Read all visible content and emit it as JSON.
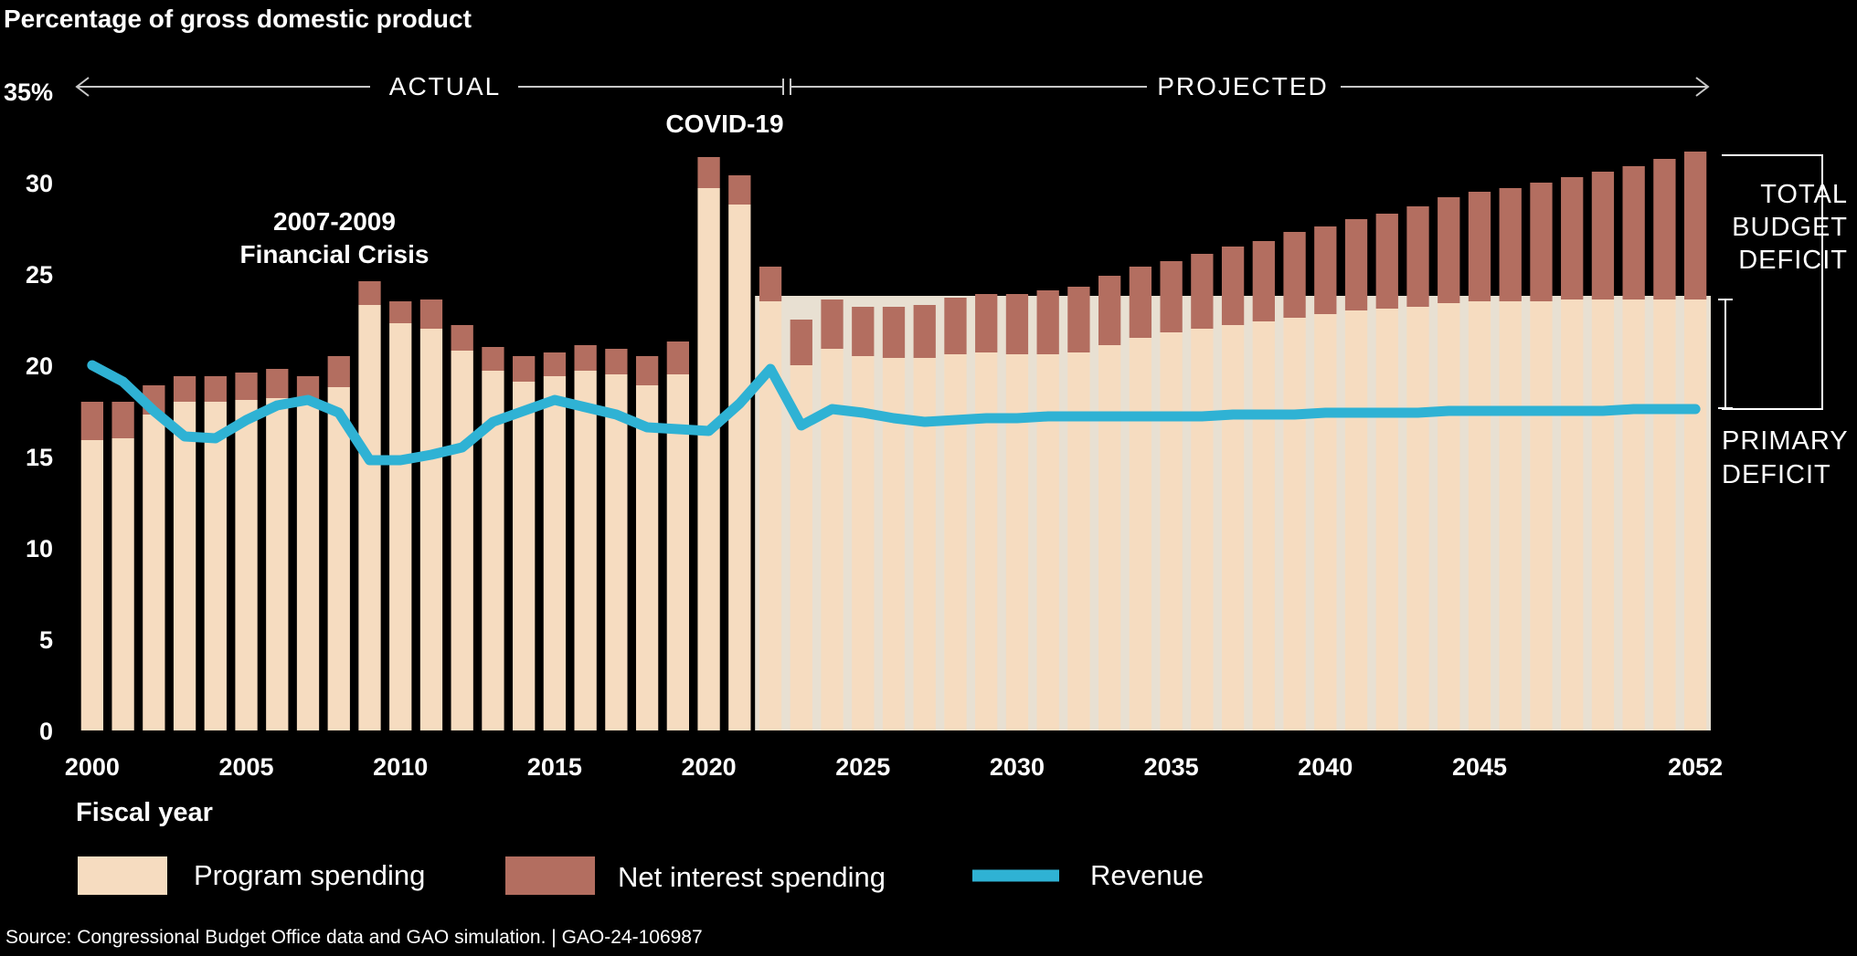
{
  "chart_data": {
    "type": "bar",
    "title": "Percentage of gross domestic product",
    "xlabel": "Fiscal year",
    "ylabel": "",
    "ylim": [
      0,
      35
    ],
    "y_ticks": [
      "0",
      "5",
      "10",
      "15",
      "20",
      "25",
      "30",
      "35%"
    ],
    "x_ticks": [
      "2000",
      "2005",
      "2010",
      "2015",
      "2020",
      "2025",
      "2030",
      "2035",
      "2040",
      "2045",
      "2052"
    ],
    "x_tick_values": [
      2000,
      2005,
      2010,
      2015,
      2020,
      2025,
      2030,
      2035,
      2040,
      2045,
      2052
    ],
    "stacked": true,
    "categories": [
      2000,
      2001,
      2002,
      2003,
      2004,
      2005,
      2006,
      2007,
      2008,
      2009,
      2010,
      2011,
      2012,
      2013,
      2014,
      2015,
      2016,
      2017,
      2018,
      2019,
      2020,
      2021,
      2022,
      2023,
      2024,
      2025,
      2026,
      2027,
      2028,
      2029,
      2030,
      2031,
      2032,
      2033,
      2034,
      2035,
      2036,
      2037,
      2038,
      2039,
      2040,
      2041,
      2042,
      2043,
      2044,
      2045,
      2046,
      2047,
      2048,
      2049,
      2050,
      2051,
      2052
    ],
    "series": [
      {
        "name": "Program spending",
        "kind": "bar",
        "color": "#f6dcc0",
        "values": [
          15.9,
          16.0,
          17.3,
          18.0,
          18.0,
          18.1,
          18.2,
          18.1,
          18.8,
          23.3,
          22.3,
          22.0,
          20.8,
          19.7,
          19.1,
          19.4,
          19.7,
          19.5,
          18.9,
          19.5,
          29.7,
          28.8,
          23.5,
          20.0,
          20.9,
          20.5,
          20.4,
          20.4,
          20.6,
          20.7,
          20.6,
          20.6,
          20.7,
          21.1,
          21.5,
          21.8,
          22.0,
          22.2,
          22.4,
          22.6,
          22.8,
          23.0,
          23.1,
          23.2,
          23.4,
          23.5,
          23.5,
          23.5,
          23.6,
          23.6,
          23.6,
          23.6,
          23.6
        ]
      },
      {
        "name": "Net interest spending",
        "kind": "bar",
        "color": "#b36e60",
        "values": [
          2.1,
          2.0,
          1.6,
          1.4,
          1.4,
          1.5,
          1.6,
          1.3,
          1.7,
          1.3,
          1.2,
          1.6,
          1.4,
          1.3,
          1.4,
          1.3,
          1.4,
          1.4,
          1.6,
          1.8,
          1.7,
          1.6,
          1.9,
          2.5,
          2.7,
          2.7,
          2.8,
          2.9,
          3.1,
          3.2,
          3.3,
          3.5,
          3.6,
          3.8,
          3.9,
          3.9,
          4.1,
          4.3,
          4.4,
          4.7,
          4.8,
          5.0,
          5.2,
          5.5,
          5.8,
          6.0,
          6.2,
          6.5,
          6.7,
          7.0,
          7.3,
          7.7,
          8.1
        ]
      },
      {
        "name": "Revenue",
        "kind": "line",
        "color": "#2fb2d4",
        "values": [
          20.0,
          19.1,
          17.5,
          16.1,
          16.0,
          17.0,
          17.8,
          18.1,
          17.4,
          14.8,
          14.8,
          15.1,
          15.5,
          16.9,
          17.5,
          18.1,
          17.7,
          17.3,
          16.6,
          16.5,
          16.4,
          17.9,
          19.8,
          16.7,
          17.6,
          17.4,
          17.1,
          16.9,
          17.0,
          17.1,
          17.1,
          17.2,
          17.2,
          17.2,
          17.2,
          17.2,
          17.2,
          17.3,
          17.3,
          17.3,
          17.4,
          17.4,
          17.4,
          17.4,
          17.5,
          17.5,
          17.5,
          17.5,
          17.5,
          17.5,
          17.6,
          17.6,
          17.6
        ]
      }
    ],
    "legend": {
      "placement": "bottom-left",
      "items": [
        "Program spending",
        "Net interest spending",
        "Revenue"
      ]
    },
    "annotations": {
      "actual": "ACTUAL",
      "projected": "PROJECTED",
      "actual_end_year": 2022,
      "covid": "COVID-19",
      "crisis_line1": "2007-2009",
      "crisis_line2": "Financial Crisis",
      "total_deficit_line1": "TOTAL",
      "total_deficit_line2": "BUDGET",
      "total_deficit_line3": "DEFICIT",
      "primary_deficit_line1": "PRIMARY",
      "primary_deficit_line2": "DEFICIT"
    },
    "source": "Source: Congressional Budget Office data and GAO simulation.  |  GAO-24-106987"
  },
  "colors": {
    "background": "#000000",
    "text": "#ffffff",
    "projected_area": "#e8e0d2",
    "program": "#f6dcc0",
    "interest": "#b36e60",
    "revenue": "#2fb2d4"
  }
}
